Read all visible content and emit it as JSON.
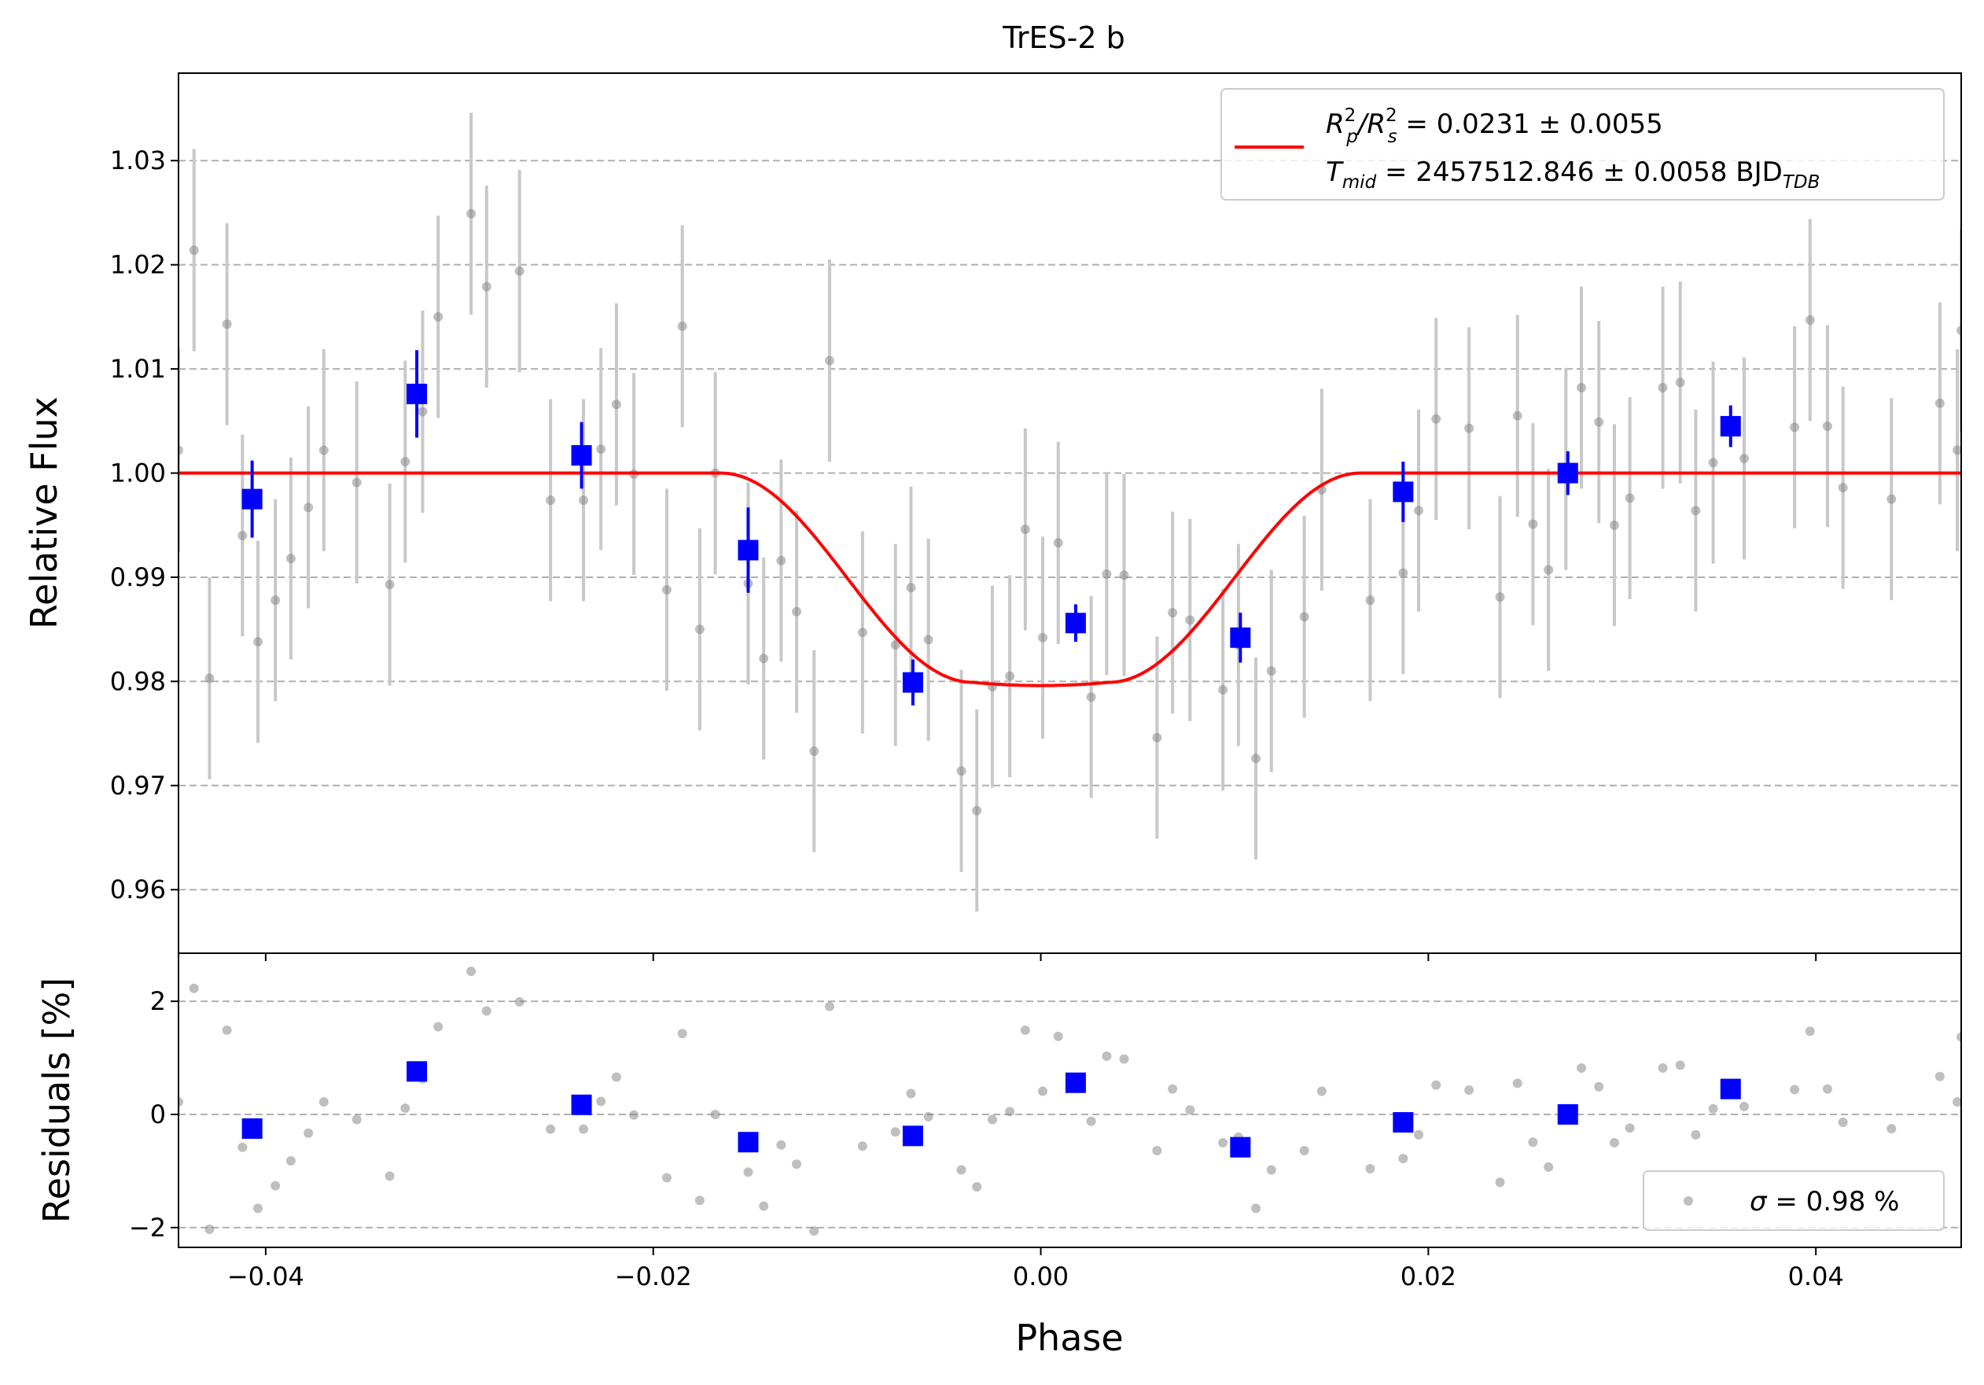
{
  "chart_data": [
    {
      "type": "scatter",
      "title": "TrES-2 b",
      "xlabel": "",
      "ylabel": "Relative Flux",
      "xlim": [
        -0.0445,
        0.0475
      ],
      "ylim": [
        0.9539,
        1.0384
      ],
      "grid": "horizontal-dashed",
      "legend_position": "top-right",
      "yticks": [
        0.96,
        0.97,
        0.98,
        0.99,
        1.0,
        1.01,
        1.02,
        1.03
      ],
      "ytick_labels": [
        "0.96",
        "0.97",
        "0.98",
        "0.99",
        "1.00",
        "1.01",
        "1.02",
        "1.03"
      ],
      "legend": {
        "line1": {
          "base": "R",
          "sup1": "2",
          "sub1": "p",
          "slash": "/R",
          "sup2": "2",
          "sub2": "s",
          "rest": " = 0.0231 ± 0.0055"
        },
        "line2": {
          "base": "T",
          "sub1": "mid",
          "rest": " = 2457512.846 ± 0.0058 BJD",
          "sub2": "TDB"
        }
      },
      "colors": {
        "model": "#ff0000",
        "binned": "#0000ff",
        "raw": "#808080",
        "raw_err": "#c8c8c8",
        "grid": "#b0b0b0"
      },
      "model": {
        "t_ingress_start": -0.0165,
        "t_ingress_end": -0.0035,
        "t_egress_start": 0.0035,
        "t_egress_end": 0.0165,
        "baseline": 1.0,
        "depth": 0.0204
      },
      "raw": {
        "x": [
          -0.0445,
          -0.0437,
          -0.0429,
          -0.042,
          -0.0412,
          -0.0404,
          -0.0395,
          -0.0387,
          -0.0378,
          -0.037,
          -0.0353,
          -0.0336,
          -0.0328,
          -0.0319,
          -0.0311,
          -0.0294,
          -0.0286,
          -0.0269,
          -0.0253,
          -0.0236,
          -0.0227,
          -0.0219,
          -0.021,
          -0.0193,
          -0.0185,
          -0.0176,
          -0.0168,
          -0.0151,
          -0.0143,
          -0.0134,
          -0.0126,
          -0.0117,
          -0.0109,
          -0.0092,
          -0.0075,
          -0.0067,
          -0.0058,
          -0.0041,
          -0.0033,
          -0.0025,
          -0.0016,
          -0.0008,
          0.0001,
          0.0009,
          0.0026,
          0.0034,
          0.0043,
          0.006,
          0.0068,
          0.0077,
          0.0094,
          0.0102,
          0.0111,
          0.0119,
          0.0136,
          0.0145,
          0.017,
          0.0187,
          0.0195,
          0.0204,
          0.0221,
          0.0237,
          0.0246,
          0.0254,
          0.0262,
          0.0271,
          0.0279,
          0.0288,
          0.0296,
          0.0304,
          0.0321,
          0.033,
          0.0338,
          0.0347,
          0.0363,
          0.0389,
          0.0397,
          0.0406,
          0.0414,
          0.0439,
          0.0464,
          0.0473,
          0.0475
        ],
        "y": [
          1.0022,
          1.0214,
          0.9803,
          1.0143,
          0.994,
          0.9838,
          0.9878,
          0.9918,
          0.9967,
          1.0022,
          0.9991,
          0.9893,
          1.0011,
          1.0059,
          1.015,
          1.0249,
          1.0179,
          1.0194,
          0.9974,
          0.9974,
          1.0023,
          1.0066,
          0.9999,
          0.9888,
          1.0141,
          0.985,
          1.0,
          0.9894,
          0.9822,
          0.9916,
          0.9867,
          0.9733,
          1.0108,
          0.9847,
          0.9835,
          0.989,
          0.984,
          0.9714,
          0.9676,
          0.9795,
          0.9805,
          0.9946,
          0.9842,
          0.9933,
          0.9785,
          0.9903,
          0.9902,
          0.9746,
          0.9866,
          0.9859,
          0.9792,
          0.9835,
          0.9726,
          0.981,
          0.9862,
          0.9984,
          0.9878,
          0.9904,
          0.9964,
          1.0052,
          1.0043,
          0.9881,
          1.0055,
          0.9951,
          0.9907,
          1.0004,
          1.0082,
          1.0049,
          0.995,
          0.9976,
          1.0082,
          1.0087,
          0.9964,
          1.001,
          1.0014,
          1.0044,
          1.0147,
          1.0045,
          0.9986,
          0.9975,
          1.0067,
          1.0022,
          1.0137
        ],
        "err": 0.0097
      },
      "binned": {
        "x": [
          -0.0407,
          -0.0322,
          -0.0237,
          -0.0151,
          -0.0066,
          0.0018,
          0.0103,
          0.0187,
          0.0272,
          0.0356
        ],
        "y": [
          0.9975,
          1.0076,
          1.0017,
          0.9926,
          0.9799,
          0.9856,
          0.9842,
          0.9982,
          1.0,
          1.0045
        ],
        "err": [
          0.0037,
          0.0042,
          0.0032,
          0.0041,
          0.0022,
          0.0018,
          0.0024,
          0.0029,
          0.0021,
          0.002
        ]
      }
    },
    {
      "type": "scatter",
      "title": "",
      "xlabel": "Phase",
      "ylabel": "Residuals [%]",
      "xlim": [
        -0.0445,
        0.0475
      ],
      "ylim": [
        -2.35,
        2.85
      ],
      "grid": "horizontal-dashed",
      "legend_position": "bottom-right",
      "yticks": [
        -2,
        0,
        2
      ],
      "ytick_labels": [
        "−2",
        "0",
        "2"
      ],
      "xticks": [
        -0.04,
        -0.02,
        0.0,
        0.02,
        0.04
      ],
      "xtick_labels": [
        "−0.04",
        "−0.02",
        "0.00",
        "0.02",
        "0.04"
      ],
      "legend": {
        "label_symbol": "σ",
        "label_rest": " = 0.98 %"
      },
      "raw": {
        "x": [
          -0.0445,
          -0.0437,
          -0.0429,
          -0.042,
          -0.0412,
          -0.0404,
          -0.0395,
          -0.0387,
          -0.0378,
          -0.037,
          -0.0353,
          -0.0336,
          -0.0328,
          -0.0319,
          -0.0311,
          -0.0294,
          -0.0286,
          -0.0269,
          -0.0253,
          -0.0236,
          -0.0227,
          -0.0219,
          -0.021,
          -0.0193,
          -0.0185,
          -0.0176,
          -0.0168,
          -0.0151,
          -0.0143,
          -0.0134,
          -0.0126,
          -0.0117,
          -0.0109,
          -0.0092,
          -0.0075,
          -0.0067,
          -0.0058,
          -0.0041,
          -0.0033,
          -0.0025,
          -0.0016,
          -0.0008,
          0.0001,
          0.0009,
          0.0026,
          0.0034,
          0.0043,
          0.006,
          0.0068,
          0.0077,
          0.0094,
          0.0102,
          0.0111,
          0.0119,
          0.0136,
          0.0145,
          0.017,
          0.0187,
          0.0195,
          0.0204,
          0.0221,
          0.0237,
          0.0246,
          0.0254,
          0.0262,
          0.0271,
          0.0279,
          0.0288,
          0.0296,
          0.0304,
          0.0321,
          0.033,
          0.0338,
          0.0347,
          0.0363,
          0.0389,
          0.0397,
          0.0406,
          0.0414,
          0.0439,
          0.0464,
          0.0473,
          0.0475
        ],
        "y": [
          0.22,
          2.23,
          -2.03,
          1.49,
          -0.58,
          -1.66,
          -1.26,
          -0.82,
          -0.33,
          0.22,
          -0.09,
          -1.09,
          0.11,
          0.63,
          1.55,
          2.53,
          1.83,
          1.99,
          -0.26,
          -0.26,
          0.23,
          0.66,
          -0.01,
          -1.12,
          1.43,
          -1.52,
          0.0,
          -1.02,
          -1.62,
          -0.54,
          -0.88,
          -2.06,
          1.91,
          -0.56,
          -0.31,
          0.37,
          -0.04,
          -0.98,
          -1.28,
          -0.09,
          0.05,
          1.49,
          0.41,
          1.38,
          -0.12,
          1.03,
          0.98,
          -0.64,
          0.45,
          0.08,
          -0.5,
          -0.4,
          -1.66,
          -0.98,
          -0.64,
          0.41,
          -0.96,
          -0.78,
          -0.36,
          0.52,
          0.43,
          -1.2,
          0.55,
          -0.49,
          -0.93,
          0.04,
          0.82,
          0.49,
          -0.5,
          -0.24,
          0.82,
          0.87,
          -0.36,
          0.1,
          0.14,
          0.44,
          1.47,
          0.45,
          -0.14,
          -0.25,
          0.67,
          0.22,
          1.37
        ]
      },
      "binned": {
        "x": [
          -0.0407,
          -0.0322,
          -0.0237,
          -0.0151,
          -0.0066,
          0.0018,
          0.0103,
          0.0187,
          0.0272,
          0.0356
        ],
        "y": [
          -0.25,
          0.76,
          0.17,
          -0.49,
          -0.38,
          0.56,
          -0.58,
          -0.14,
          0.0,
          0.45
        ]
      }
    }
  ]
}
